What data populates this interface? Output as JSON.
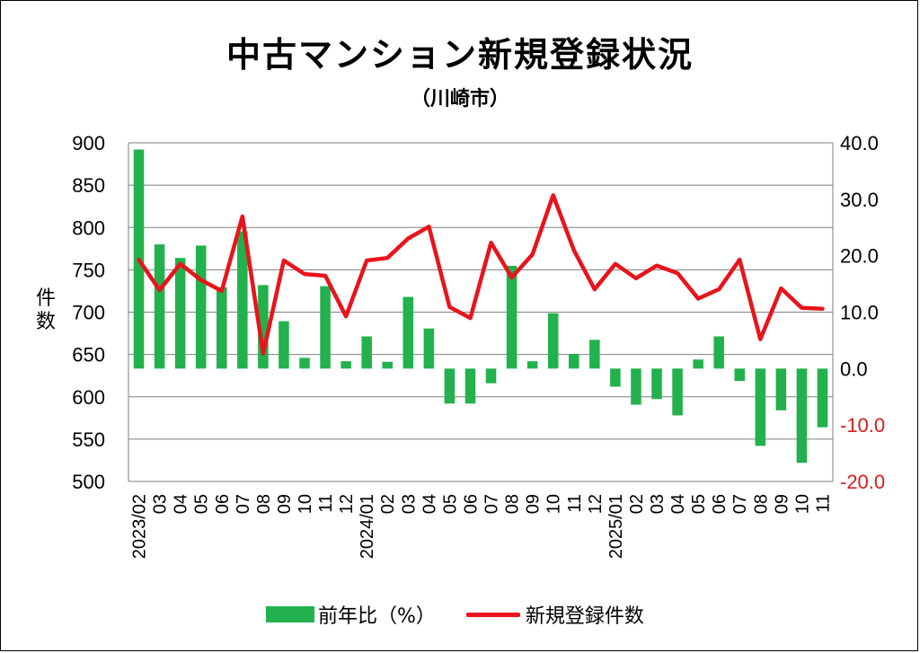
{
  "chart_data": {
    "type": "bar+line",
    "title": "中古マンション新規登録状況",
    "subtitle": "（川崎市）",
    "ylabel": "件数",
    "categories": [
      "2023/02",
      "03",
      "04",
      "05",
      "06",
      "07",
      "08",
      "09",
      "10",
      "11",
      "12",
      "2024/01",
      "02",
      "03",
      "04",
      "05",
      "06",
      "07",
      "08",
      "09",
      "10",
      "11",
      "12",
      "2025/01",
      "02",
      "03",
      "04",
      "05",
      "06",
      "07",
      "08",
      "09",
      "10",
      "11"
    ],
    "left_axis": {
      "min": 500,
      "max": 900,
      "step": 50,
      "ticks": [
        "900",
        "850",
        "800",
        "750",
        "700",
        "650",
        "600",
        "550",
        "500"
      ]
    },
    "right_axis": {
      "min": -20,
      "max": 40,
      "step": 10,
      "ticks": [
        "40.0",
        "30.0",
        "20.0",
        "10.0",
        "0.0",
        "-10.0",
        "-20.0"
      ],
      "negative_color": "#d81b1b"
    },
    "series": [
      {
        "name": "前年比（%）",
        "type": "bar",
        "axis": "right",
        "color": "#22b14c",
        "values": [
          38.8,
          22.0,
          19.6,
          21.8,
          14.4,
          24.3,
          14.8,
          8.4,
          1.9,
          14.6,
          1.3,
          5.7,
          1.2,
          12.7,
          7.1,
          -6.2,
          -6.2,
          -2.6,
          18.2,
          1.3,
          9.8,
          2.6,
          5.1,
          -3.2,
          -6.4,
          -5.4,
          -8.3,
          1.6,
          5.7,
          -2.2,
          -13.7,
          -7.4,
          -16.7,
          -10.4
        ]
      },
      {
        "name": "新規登録件数",
        "type": "line",
        "axis": "left",
        "color": "#e8141b",
        "values": [
          762,
          726,
          757,
          738,
          725,
          813,
          651,
          761,
          745,
          743,
          695,
          761,
          764,
          787,
          801,
          706,
          693,
          782,
          741,
          768,
          838,
          773,
          727,
          757,
          740,
          755,
          746,
          716,
          727,
          762,
          668,
          728,
          705,
          704
        ]
      }
    ],
    "legend_position": "bottom-center"
  }
}
